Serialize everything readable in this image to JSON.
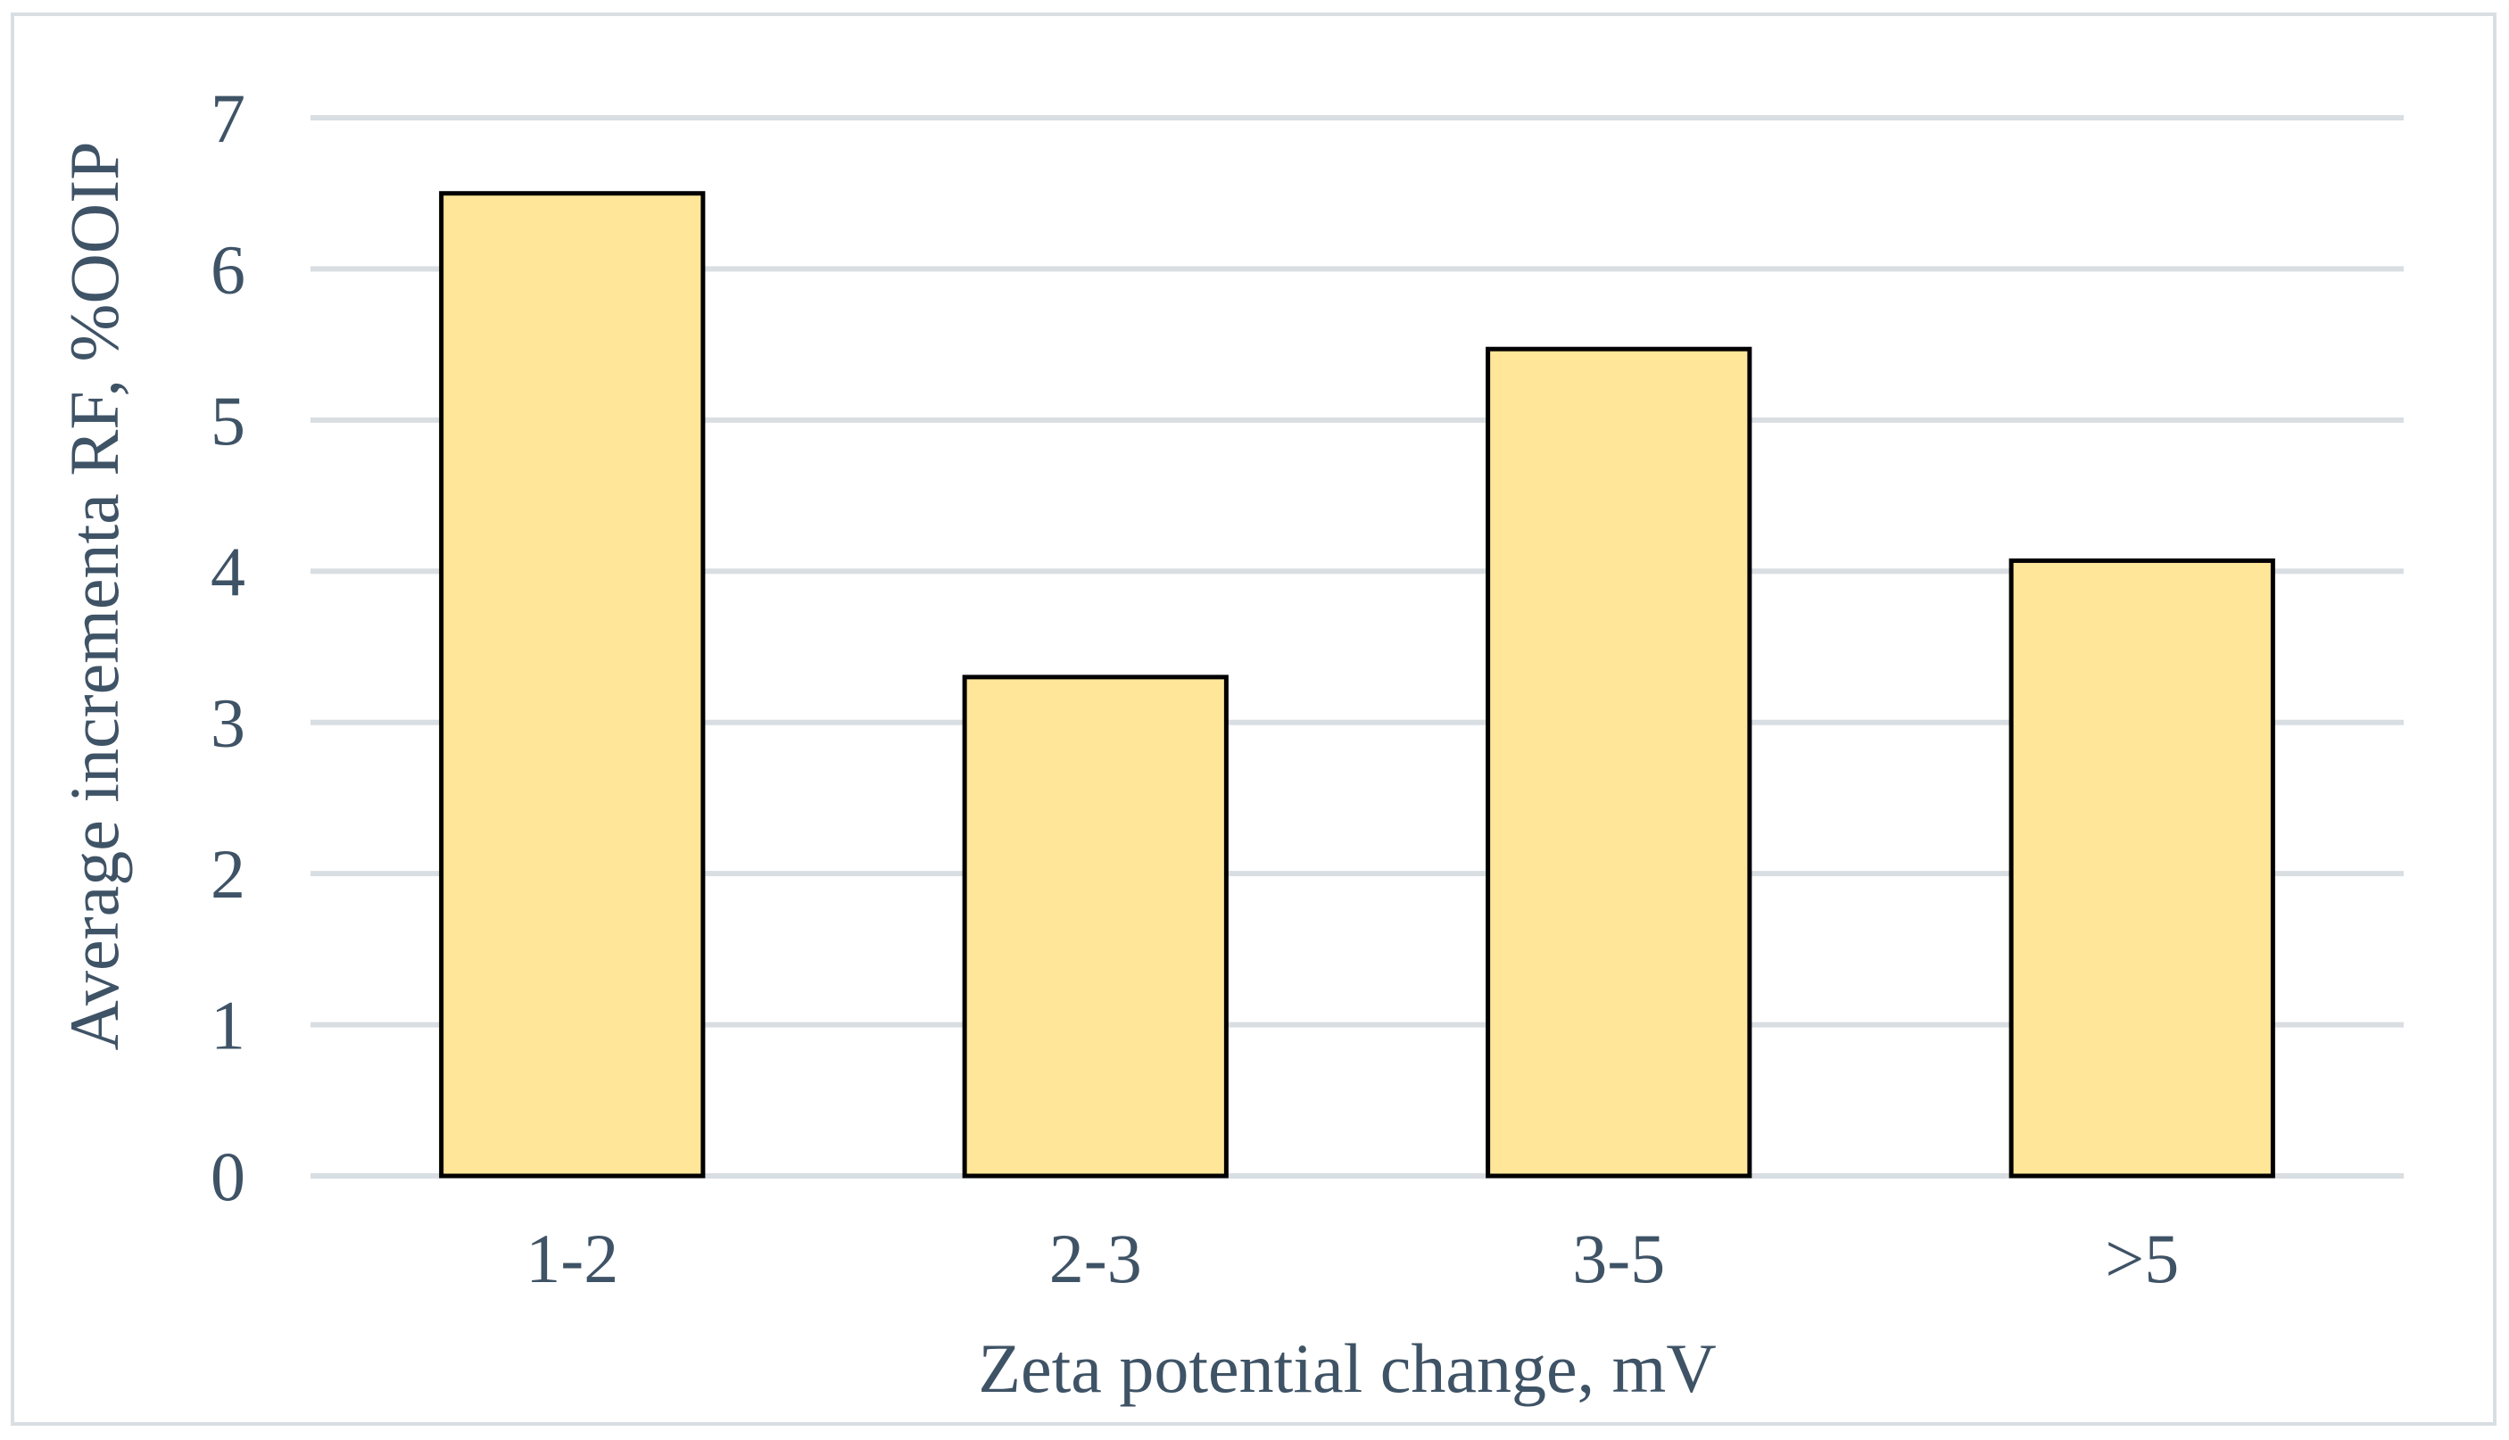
{
  "chart_data": {
    "type": "bar",
    "categories": [
      "1-2",
      "2-3",
      "3-5",
      ">5"
    ],
    "values": [
      6.5,
      3.3,
      5.47,
      4.07
    ],
    "xlabel": "Zeta potential change, mV",
    "ylabel": "Average incrementa RF, %OOIP",
    "ylim": [
      0,
      7
    ],
    "yticks": [
      "0",
      "1",
      "2",
      "3",
      "4",
      "5",
      "6",
      "7"
    ],
    "grid": true,
    "legend": "none"
  },
  "colors": {
    "bar_fill": "#ffe699",
    "bar_stroke": "#000000",
    "gridline": "#d9dee3",
    "text": "#3f5366",
    "frame": "#d9dee3"
  }
}
